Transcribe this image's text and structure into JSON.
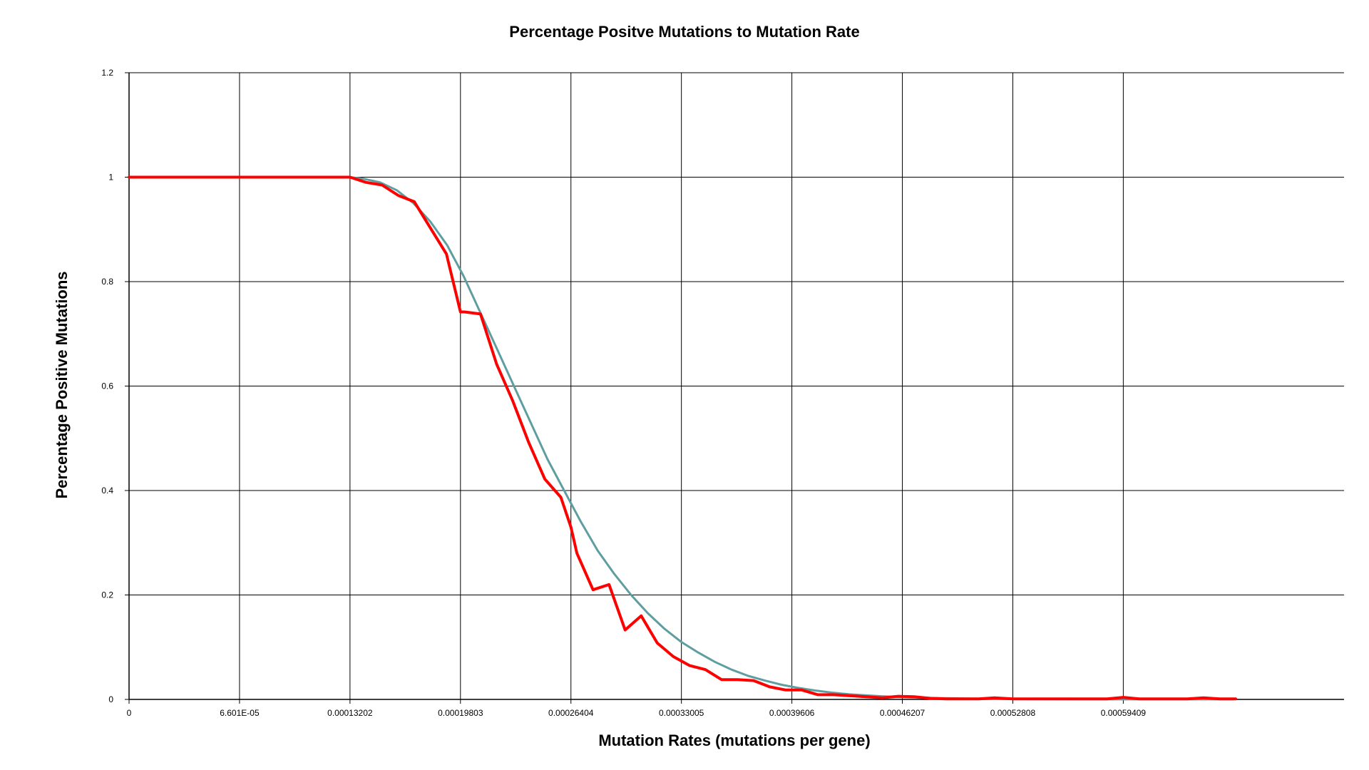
{
  "chart_data": {
    "type": "line",
    "title": "Percentage Positve Mutations to Mutation Rate",
    "xlabel": "Mutation Rates (mutations per gene)",
    "ylabel": "Percentage Positive Mutations",
    "xlim": [
      0,
      0.000726
    ],
    "ylim": [
      0,
      1.2
    ],
    "grid": true,
    "x_ticks": [
      "0",
      "6.601E-05",
      "0.00013202",
      "0.00019803",
      "0.00026404",
      "0.00033005",
      "0.00039606",
      "0.00046207",
      "0.00052808",
      "0.00059409"
    ],
    "x_tick_values": [
      0,
      6.601e-05,
      0.00013202,
      0.00019803,
      0.00026404,
      0.00033005,
      0.00039606,
      0.00046207,
      0.00052808,
      0.00059409
    ],
    "y_ticks": [
      "0",
      "0.2",
      "0.4",
      "0.6",
      "0.8",
      "1",
      "1.2"
    ],
    "y_tick_values": [
      0,
      0.2,
      0.4,
      0.6,
      0.8,
      1.0,
      1.2
    ],
    "series": [
      {
        "color": "#ff0000",
        "x": [
          0,
          0.00013202,
          0.00014162,
          0.00015122,
          0.00016082,
          0.00017042,
          0.00018002,
          0.00018962,
          0.00019803,
          0.00020042,
          0.00021002,
          0.00021962,
          0.00022922,
          0.00023882,
          0.00024842,
          0.00025802,
          0.00026404,
          0.00026762,
          0.00027722,
          0.00028682,
          0.00029642,
          0.00030602,
          0.00031562,
          0.00032522,
          0.00033482,
          0.00034442,
          0.00035402,
          0.00036362,
          0.00037322,
          0.00038282,
          0.00039242,
          0.00040202,
          0.00041162,
          0.00042122,
          0.00043082,
          0.00044042,
          0.00045002,
          0.00045962,
          0.00046922,
          0.00047882,
          0.00048842,
          0.00049802,
          0.00050762,
          0.00051722,
          0.00052808,
          0.00053642,
          0.00054602,
          0.00055562,
          0.00056522,
          0.00057482,
          0.00058442,
          0.00059409,
          0.00060362,
          0.00061322,
          0.00062282,
          0.00063242,
          0.00064202,
          0.00065162,
          0.00066122
        ],
        "y": [
          1.0,
          1.0,
          0.99,
          0.985,
          0.965,
          0.953,
          0.903,
          0.853,
          0.742,
          0.742,
          0.738,
          0.642,
          0.572,
          0.492,
          0.422,
          0.387,
          0.33,
          0.28,
          0.21,
          0.22,
          0.133,
          0.16,
          0.108,
          0.082,
          0.065,
          0.057,
          0.038,
          0.038,
          0.036,
          0.024,
          0.018,
          0.018,
          0.009,
          0.009,
          0.007,
          0.005,
          0.003,
          0.006,
          0.005,
          0.002,
          0.001,
          0.001,
          0.001,
          0.003,
          0.001,
          0.001,
          0.001,
          0.001,
          0.001,
          0.001,
          0.001,
          0.004,
          0.001,
          0.001,
          0.001,
          0.001,
          0.003,
          0.001,
          0.001
        ]
      },
      {
        "color": "#5f9ea0",
        "x": [
          0,
          0.00013202,
          0.00014,
          0.00015,
          0.00016,
          0.00017,
          0.00018,
          0.00019,
          0.0002,
          0.00021,
          0.00022,
          0.00023,
          0.00024,
          0.00025,
          0.00026,
          0.00027,
          0.00028,
          0.00029,
          0.0003,
          0.00031,
          0.00032,
          0.00033,
          0.00034,
          0.00035,
          0.00036,
          0.00037,
          0.00038,
          0.00039,
          0.0004,
          0.00041,
          0.00042,
          0.00043,
          0.00044,
          0.00045,
          0.00046,
          0.00048,
          0.0005,
          0.00052,
          0.00054,
          0.00056,
          0.00058,
          0.0006,
          0.00062,
          0.00064,
          0.00066
        ],
        "y": [
          1.0,
          1.0,
          0.997,
          0.99,
          0.975,
          0.95,
          0.915,
          0.87,
          0.81,
          0.74,
          0.67,
          0.6,
          0.53,
          0.46,
          0.4,
          0.34,
          0.285,
          0.24,
          0.2,
          0.165,
          0.135,
          0.11,
          0.09,
          0.072,
          0.057,
          0.045,
          0.036,
          0.028,
          0.022,
          0.017,
          0.013,
          0.01,
          0.0078,
          0.006,
          0.0046,
          0.0027,
          0.0016,
          0.0009,
          0.0005,
          0.0003,
          0.0002,
          0.0001,
          0.0001,
          0.0001,
          0.0001
        ]
      }
    ]
  }
}
